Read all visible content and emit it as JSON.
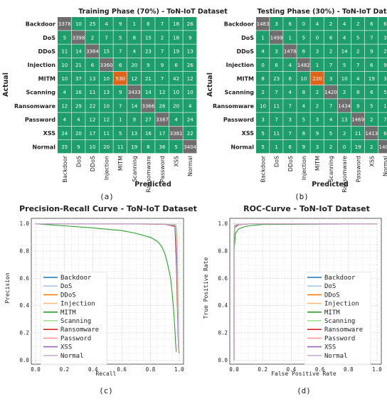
{
  "chart_data": [
    {
      "type": "heatmap",
      "title": "Training Phase (70%) - ToN-IoT Dataset",
      "xlabel": "Predicted",
      "ylabel": "Actual",
      "caption": "(a)",
      "labels": [
        "Backdoor",
        "DoS",
        "DDoS",
        "Injection",
        "MITM",
        "Scanning",
        "Ransomware",
        "Password",
        "XSS",
        "Normal"
      ],
      "matrix": [
        [
          3378,
          10,
          25,
          4,
          9,
          1,
          6,
          7,
          18,
          26
        ],
        [
          5,
          3398,
          2,
          7,
          5,
          8,
          15,
          2,
          18,
          9
        ],
        [
          11,
          14,
          3364,
          15,
          7,
          4,
          23,
          7,
          19,
          13
        ],
        [
          10,
          21,
          6,
          3360,
          6,
          20,
          9,
          9,
          6,
          26
        ],
        [
          10,
          37,
          13,
          10,
          530,
          12,
          21,
          7,
          42,
          12
        ],
        [
          4,
          16,
          11,
          13,
          9,
          3433,
          14,
          12,
          10,
          10
        ],
        [
          12,
          29,
          22,
          10,
          7,
          14,
          3366,
          26,
          20,
          4
        ],
        [
          4,
          4,
          12,
          12,
          1,
          9,
          27,
          3387,
          4,
          24
        ],
        [
          24,
          20,
          17,
          11,
          5,
          13,
          16,
          17,
          3381,
          22
        ],
        [
          25,
          9,
          10,
          20,
          11,
          19,
          8,
          36,
          5,
          3404
        ]
      ]
    },
    {
      "type": "heatmap",
      "title": "Testing Phase (30%) - ToN-IoT Dataset",
      "xlabel": "Predicted",
      "ylabel": "Actual",
      "caption": "(b)",
      "labels": [
        "Backdoor",
        "DoS",
        "DDoS",
        "Injection",
        "MITM",
        "Scanning",
        "Ransomware",
        "Password",
        "XSS",
        "Normal"
      ],
      "matrix": [
        [
          1483,
          3,
          6,
          0,
          4,
          2,
          4,
          2,
          6,
          6
        ],
        [
          1,
          1499,
          1,
          5,
          0,
          6,
          4,
          5,
          7,
          3
        ],
        [
          4,
          3,
          1478,
          6,
          3,
          2,
          14,
          2,
          9,
          2
        ],
        [
          0,
          6,
          4,
          1482,
          1,
          7,
          5,
          7,
          6,
          9
        ],
        [
          8,
          23,
          6,
          10,
          220,
          3,
          10,
          4,
          19,
          3
        ],
        [
          2,
          7,
          4,
          8,
          2,
          1420,
          2,
          8,
          6,
          5
        ],
        [
          10,
          11,
          7,
          4,
          2,
          7,
          1434,
          9,
          5,
          1
        ],
        [
          3,
          7,
          3,
          5,
          3,
          4,
          13,
          1469,
          2,
          7
        ],
        [
          5,
          11,
          7,
          8,
          9,
          5,
          2,
          11,
          1413,
          6
        ],
        [
          5,
          1,
          6,
          9,
          3,
          2,
          0,
          19,
          2,
          1406
        ]
      ]
    },
    {
      "type": "line",
      "title": "Precision-Recall Curve - ToN-IoT Dataset",
      "xlabel": "Recall",
      "ylabel": "Precision",
      "caption": "(c)",
      "xlim": [
        -0.03,
        1.03
      ],
      "ylim": [
        -0.03,
        1.04
      ],
      "ticks": [
        "0.0",
        "0.2",
        "0.4",
        "0.6",
        "0.8",
        "1.0"
      ],
      "grid": true,
      "legend": "lower-left",
      "series": [
        {
          "name": "Backdoor",
          "color": "#1f77b4",
          "x": [
            0.0,
            0.5,
            0.9,
            0.975,
            0.985,
            0.99,
            0.995,
            1.0
          ],
          "y": [
            1.0,
            1.0,
            0.998,
            0.99,
            0.8,
            0.4,
            0.1,
            0.05
          ]
        },
        {
          "name": "DoS",
          "color": "#aec7e8",
          "x": [
            0.0,
            0.5,
            0.9,
            0.975,
            0.983,
            0.99,
            0.995,
            1.0
          ],
          "y": [
            1.0,
            1.0,
            0.998,
            0.99,
            0.85,
            0.45,
            0.12,
            0.05
          ]
        },
        {
          "name": "DDoS",
          "color": "#ff7f0e",
          "x": [
            0.0,
            0.5,
            0.9,
            0.972,
            0.982,
            0.99,
            0.995,
            1.0
          ],
          "y": [
            1.0,
            1.0,
            0.997,
            0.985,
            0.7,
            0.3,
            0.08,
            0.05
          ]
        },
        {
          "name": "Injection",
          "color": "#ffbb78",
          "x": [
            0.0,
            0.5,
            0.9,
            0.975,
            0.983,
            0.99,
            0.995,
            1.0
          ],
          "y": [
            1.0,
            1.0,
            0.998,
            0.99,
            0.82,
            0.42,
            0.1,
            0.05
          ]
        },
        {
          "name": "MITM",
          "color": "#2ca02c",
          "x": [
            0.0,
            0.2,
            0.4,
            0.6,
            0.7,
            0.8,
            0.85,
            0.88,
            0.9,
            0.92,
            0.94,
            0.95,
            0.96,
            0.97,
            0.975,
            0.98
          ],
          "y": [
            1.0,
            0.985,
            0.97,
            0.95,
            0.93,
            0.9,
            0.87,
            0.83,
            0.78,
            0.7,
            0.6,
            0.5,
            0.38,
            0.22,
            0.12,
            0.06
          ]
        },
        {
          "name": "Scanning",
          "color": "#98df8a",
          "x": [
            0.0,
            0.5,
            0.9,
            0.978,
            0.986,
            0.992,
            0.996,
            1.0
          ],
          "y": [
            1.0,
            1.0,
            0.999,
            0.995,
            0.9,
            0.5,
            0.15,
            0.05
          ]
        },
        {
          "name": "Ransomware",
          "color": "#d62728",
          "x": [
            0.0,
            0.5,
            0.9,
            0.97,
            0.98,
            0.988,
            0.994,
            1.0
          ],
          "y": [
            1.0,
            1.0,
            0.997,
            0.98,
            0.7,
            0.35,
            0.1,
            0.05
          ]
        },
        {
          "name": "Password",
          "color": "#ff9896",
          "x": [
            0.0,
            0.5,
            0.9,
            0.973,
            0.982,
            0.99,
            0.995,
            1.0
          ],
          "y": [
            1.0,
            1.0,
            0.998,
            0.987,
            0.78,
            0.38,
            0.1,
            0.05
          ]
        },
        {
          "name": "XSS",
          "color": "#9467bd",
          "x": [
            0.0,
            0.5,
            0.9,
            0.972,
            0.982,
            0.99,
            0.995,
            1.0
          ],
          "y": [
            1.0,
            1.0,
            0.997,
            0.985,
            0.75,
            0.35,
            0.09,
            0.05
          ]
        },
        {
          "name": "Normal",
          "color": "#c5b0d5",
          "x": [
            0.0,
            0.5,
            0.9,
            0.974,
            0.983,
            0.99,
            0.995,
            1.0
          ],
          "y": [
            1.0,
            1.0,
            0.998,
            0.988,
            0.8,
            0.4,
            0.1,
            0.05
          ]
        }
      ]
    },
    {
      "type": "line",
      "title": "ROC-Curve - ToN-IoT Dataset",
      "xlabel": "False Positive Rate",
      "ylabel": "True Positive Rate",
      "caption": "(d)",
      "xlim": [
        -0.03,
        1.03
      ],
      "ylim": [
        -0.03,
        1.04
      ],
      "ticks": [
        "0.0",
        "0.2",
        "0.4",
        "0.6",
        "0.8",
        "1.0"
      ],
      "grid": true,
      "legend": "lower-right",
      "series": [
        {
          "name": "Backdoor",
          "color": "#1f77b4",
          "x": [
            0,
            0,
            0.005,
            0.02,
            0.1,
            1
          ],
          "y": [
            0,
            0.9,
            0.98,
            0.995,
            0.999,
            1
          ]
        },
        {
          "name": "DoS",
          "color": "#aec7e8",
          "x": [
            0,
            0,
            0.004,
            0.02,
            0.1,
            1
          ],
          "y": [
            0,
            0.92,
            0.985,
            0.996,
            0.999,
            1
          ]
        },
        {
          "name": "DDoS",
          "color": "#ff7f0e",
          "x": [
            0,
            0,
            0.006,
            0.03,
            0.1,
            1
          ],
          "y": [
            0,
            0.88,
            0.975,
            0.993,
            0.999,
            1
          ]
        },
        {
          "name": "Injection",
          "color": "#ffbb78",
          "x": [
            0,
            0,
            0.005,
            0.02,
            0.1,
            1
          ],
          "y": [
            0,
            0.9,
            0.98,
            0.995,
            0.999,
            1
          ]
        },
        {
          "name": "MITM",
          "color": "#2ca02c",
          "x": [
            0,
            0,
            0.01,
            0.03,
            0.06,
            0.1,
            0.2,
            1
          ],
          "y": [
            0,
            0.8,
            0.93,
            0.96,
            0.975,
            0.985,
            0.995,
            1
          ]
        },
        {
          "name": "Scanning",
          "color": "#98df8a",
          "x": [
            0,
            0,
            0.004,
            0.02,
            0.1,
            1
          ],
          "y": [
            0,
            0.93,
            0.988,
            0.997,
            0.999,
            1
          ]
        },
        {
          "name": "Ransomware",
          "color": "#d62728",
          "x": [
            0,
            0,
            0.006,
            0.03,
            0.1,
            1
          ],
          "y": [
            0,
            0.88,
            0.975,
            0.993,
            0.999,
            1
          ]
        },
        {
          "name": "Password",
          "color": "#ff9896",
          "x": [
            0,
            0,
            0.005,
            0.02,
            0.1,
            1
          ],
          "y": [
            0,
            0.9,
            0.98,
            0.995,
            0.999,
            1
          ]
        },
        {
          "name": "XSS",
          "color": "#9467bd",
          "x": [
            0,
            0,
            0.006,
            0.025,
            0.1,
            1
          ],
          "y": [
            0,
            0.89,
            0.978,
            0.994,
            0.999,
            1
          ]
        },
        {
          "name": "Normal",
          "color": "#c5b0d5",
          "x": [
            0,
            0,
            0.005,
            0.02,
            0.1,
            1
          ],
          "y": [
            0,
            0.9,
            0.98,
            0.995,
            0.999,
            1
          ]
        }
      ]
    }
  ],
  "colors": {
    "cell_offdiag": "#1e9e6c",
    "cell_diag": "#6e6e6e",
    "cell_diag_mitm": "#e0631a",
    "cell_text": "#ffffff"
  }
}
